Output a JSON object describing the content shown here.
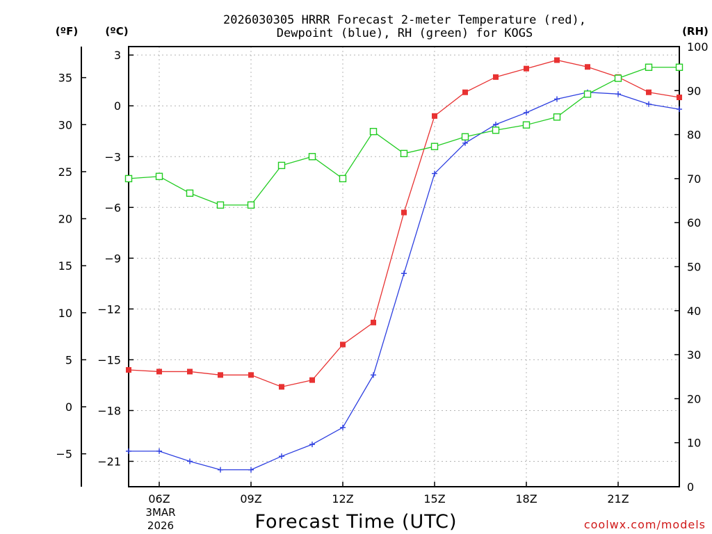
{
  "chart_data": {
    "type": "line",
    "title_line1": "2026030305 HRRR Forecast 2-meter Temperature (red),",
    "title_line2": "Dewpoint (blue), RH (green) for KOGS",
    "xlabel": "Forecast Time (UTC)",
    "date_line1": "3MAR",
    "date_line2": "2026",
    "credit": "coolwx.com/models",
    "axis_units": {
      "fahrenheit": "(ºF)",
      "celsius": "(ºC)",
      "rh": "(RH)"
    },
    "hours": [
      5,
      6,
      7,
      8,
      9,
      10,
      11,
      12,
      13,
      14,
      15,
      16,
      17,
      18,
      19,
      20,
      21,
      22,
      23
    ],
    "xlim": [
      5,
      23
    ],
    "x_ticks": [
      {
        "hour": 6,
        "label": "06Z"
      },
      {
        "hour": 9,
        "label": "09Z"
      },
      {
        "hour": 12,
        "label": "12Z"
      },
      {
        "hour": 15,
        "label": "15Z"
      },
      {
        "hour": 18,
        "label": "18Z"
      },
      {
        "hour": 21,
        "label": "21Z"
      }
    ],
    "celsius_ylim": [
      -22.5,
      3.5
    ],
    "celsius_ticks": [
      3,
      0,
      -3,
      -6,
      -9,
      -12,
      -15,
      -18,
      -21
    ],
    "celsius_tick_labels": [
      "3",
      "0",
      "−3",
      "−6",
      "−9",
      "−12",
      "−15",
      "−18",
      "−21"
    ],
    "fahrenheit_ticks": [
      35,
      30,
      25,
      20,
      15,
      10,
      5,
      0,
      -5
    ],
    "fahrenheit_tick_labels": [
      "35",
      "30",
      "25",
      "20",
      "15",
      "10",
      "5",
      "0",
      "−5"
    ],
    "rh_ylim": [
      0,
      100
    ],
    "rh_ticks": [
      100,
      90,
      80,
      70,
      60,
      50,
      40,
      30,
      20,
      10,
      0
    ],
    "rh_tick_labels": [
      "100",
      "90",
      "80",
      "70",
      "60",
      "50",
      "40",
      "30",
      "20",
      "10",
      "0"
    ],
    "series": [
      {
        "name": "Temperature",
        "unit": "celsius",
        "color": "#e83232",
        "marker": "filled-square",
        "values": [
          -15.6,
          -15.7,
          -15.7,
          -15.9,
          -15.9,
          -16.6,
          -16.2,
          -14.1,
          -12.8,
          -6.3,
          -0.6,
          0.8,
          1.7,
          2.2,
          2.7,
          2.3,
          1.7,
          0.8,
          0.5
        ]
      },
      {
        "name": "Dewpoint",
        "unit": "celsius",
        "color": "#2d3fe0",
        "marker": "plus",
        "values": [
          -20.4,
          -20.4,
          -21.0,
          -21.5,
          -21.5,
          -20.7,
          -20.0,
          -19.0,
          -15.9,
          -9.9,
          -4.0,
          -2.2,
          -1.1,
          -0.4,
          0.4,
          0.8,
          0.7,
          0.1,
          -0.2
        ]
      },
      {
        "name": "RH",
        "unit": "rh",
        "color": "#22cc22",
        "marker": "open-square",
        "values": [
          70,
          70.5,
          66.7,
          64,
          64,
          73,
          75,
          70,
          80.7,
          75.7,
          77.3,
          79.5,
          81,
          82.2,
          84,
          89.2,
          92.8,
          95.3,
          95.3
        ]
      }
    ]
  }
}
